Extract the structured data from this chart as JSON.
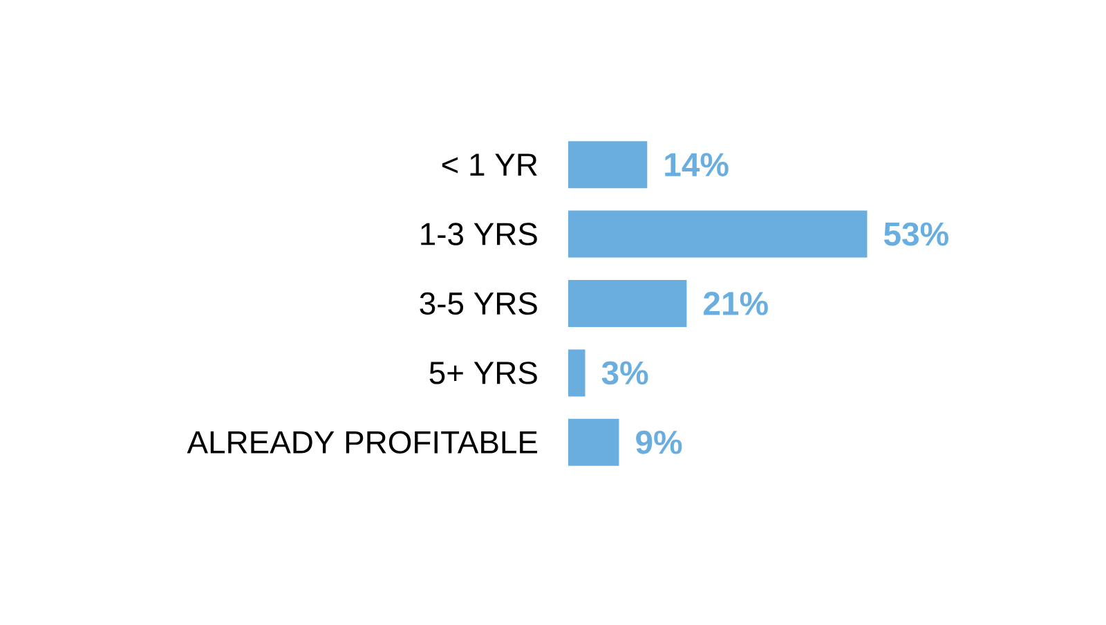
{
  "chart_data": {
    "type": "bar",
    "orientation": "horizontal",
    "categories": [
      "< 1 YR",
      "1-3 YRS",
      "3-5 YRS",
      "5+ YRS",
      "ALREADY PROFITABLE"
    ],
    "values": [
      14,
      53,
      21,
      3,
      9
    ],
    "color": "#6aaee0",
    "value_labels": [
      "14%",
      "53%",
      "21%",
      "3%",
      "9%"
    ]
  }
}
